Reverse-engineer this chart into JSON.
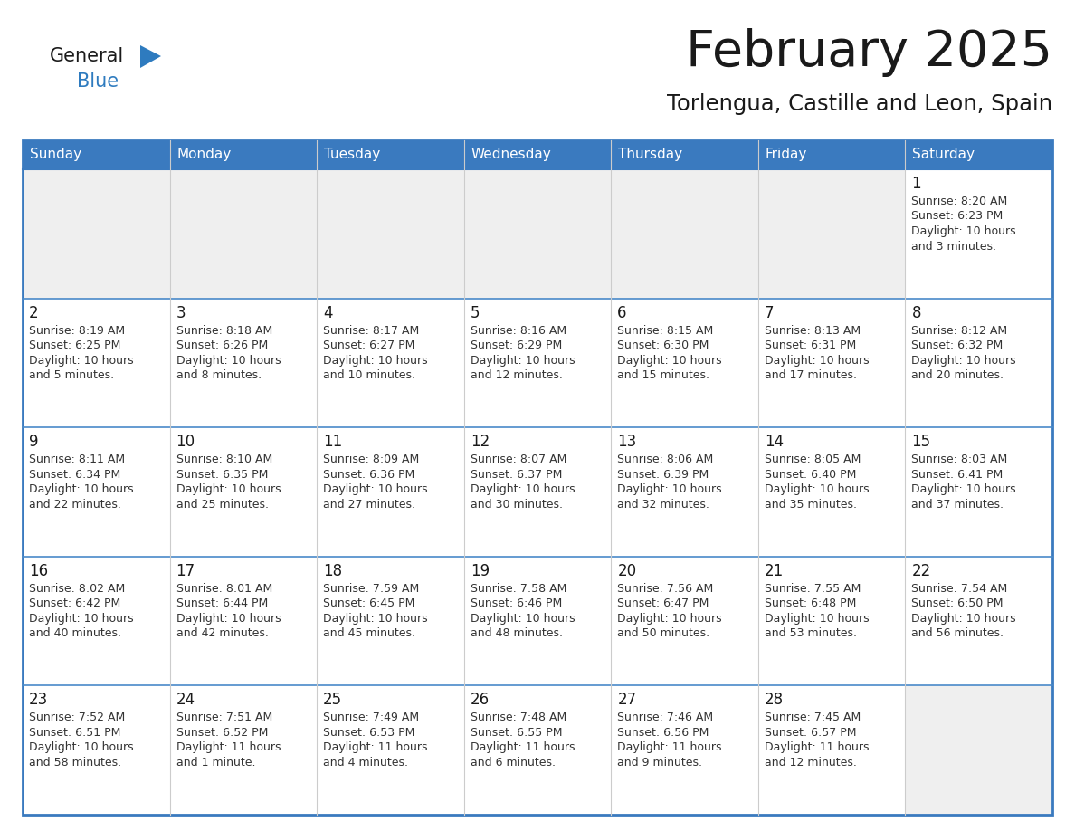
{
  "title": "February 2025",
  "subtitle": "Torlengua, Castille and Leon, Spain",
  "header_color": "#3a7abf",
  "header_text_color": "#ffffff",
  "border_color": "#3a7abf",
  "row_border_color": "#4a8ac9",
  "col_border_color": "#cccccc",
  "day_names": [
    "Sunday",
    "Monday",
    "Tuesday",
    "Wednesday",
    "Thursday",
    "Friday",
    "Saturday"
  ],
  "title_color": "#1a1a1a",
  "subtitle_color": "#1a1a1a",
  "day_num_color": "#1a1a1a",
  "cell_text_color": "#333333",
  "empty_cell_bg": "#efefef",
  "filled_cell_bg": "#ffffff",
  "calendar": [
    [
      null,
      null,
      null,
      null,
      null,
      null,
      {
        "day": 1,
        "rise": "Sunrise: 8:20 AM",
        "set": "Sunset: 6:23 PM",
        "day_hrs": "Daylight: 10 hours",
        "day_min": "and 3 minutes."
      }
    ],
    [
      {
        "day": 2,
        "rise": "Sunrise: 8:19 AM",
        "set": "Sunset: 6:25 PM",
        "day_hrs": "Daylight: 10 hours",
        "day_min": "and 5 minutes."
      },
      {
        "day": 3,
        "rise": "Sunrise: 8:18 AM",
        "set": "Sunset: 6:26 PM",
        "day_hrs": "Daylight: 10 hours",
        "day_min": "and 8 minutes."
      },
      {
        "day": 4,
        "rise": "Sunrise: 8:17 AM",
        "set": "Sunset: 6:27 PM",
        "day_hrs": "Daylight: 10 hours",
        "day_min": "and 10 minutes."
      },
      {
        "day": 5,
        "rise": "Sunrise: 8:16 AM",
        "set": "Sunset: 6:29 PM",
        "day_hrs": "Daylight: 10 hours",
        "day_min": "and 12 minutes."
      },
      {
        "day": 6,
        "rise": "Sunrise: 8:15 AM",
        "set": "Sunset: 6:30 PM",
        "day_hrs": "Daylight: 10 hours",
        "day_min": "and 15 minutes."
      },
      {
        "day": 7,
        "rise": "Sunrise: 8:13 AM",
        "set": "Sunset: 6:31 PM",
        "day_hrs": "Daylight: 10 hours",
        "day_min": "and 17 minutes."
      },
      {
        "day": 8,
        "rise": "Sunrise: 8:12 AM",
        "set": "Sunset: 6:32 PM",
        "day_hrs": "Daylight: 10 hours",
        "day_min": "and 20 minutes."
      }
    ],
    [
      {
        "day": 9,
        "rise": "Sunrise: 8:11 AM",
        "set": "Sunset: 6:34 PM",
        "day_hrs": "Daylight: 10 hours",
        "day_min": "and 22 minutes."
      },
      {
        "day": 10,
        "rise": "Sunrise: 8:10 AM",
        "set": "Sunset: 6:35 PM",
        "day_hrs": "Daylight: 10 hours",
        "day_min": "and 25 minutes."
      },
      {
        "day": 11,
        "rise": "Sunrise: 8:09 AM",
        "set": "Sunset: 6:36 PM",
        "day_hrs": "Daylight: 10 hours",
        "day_min": "and 27 minutes."
      },
      {
        "day": 12,
        "rise": "Sunrise: 8:07 AM",
        "set": "Sunset: 6:37 PM",
        "day_hrs": "Daylight: 10 hours",
        "day_min": "and 30 minutes."
      },
      {
        "day": 13,
        "rise": "Sunrise: 8:06 AM",
        "set": "Sunset: 6:39 PM",
        "day_hrs": "Daylight: 10 hours",
        "day_min": "and 32 minutes."
      },
      {
        "day": 14,
        "rise": "Sunrise: 8:05 AM",
        "set": "Sunset: 6:40 PM",
        "day_hrs": "Daylight: 10 hours",
        "day_min": "and 35 minutes."
      },
      {
        "day": 15,
        "rise": "Sunrise: 8:03 AM",
        "set": "Sunset: 6:41 PM",
        "day_hrs": "Daylight: 10 hours",
        "day_min": "and 37 minutes."
      }
    ],
    [
      {
        "day": 16,
        "rise": "Sunrise: 8:02 AM",
        "set": "Sunset: 6:42 PM",
        "day_hrs": "Daylight: 10 hours",
        "day_min": "and 40 minutes."
      },
      {
        "day": 17,
        "rise": "Sunrise: 8:01 AM",
        "set": "Sunset: 6:44 PM",
        "day_hrs": "Daylight: 10 hours",
        "day_min": "and 42 minutes."
      },
      {
        "day": 18,
        "rise": "Sunrise: 7:59 AM",
        "set": "Sunset: 6:45 PM",
        "day_hrs": "Daylight: 10 hours",
        "day_min": "and 45 minutes."
      },
      {
        "day": 19,
        "rise": "Sunrise: 7:58 AM",
        "set": "Sunset: 6:46 PM",
        "day_hrs": "Daylight: 10 hours",
        "day_min": "and 48 minutes."
      },
      {
        "day": 20,
        "rise": "Sunrise: 7:56 AM",
        "set": "Sunset: 6:47 PM",
        "day_hrs": "Daylight: 10 hours",
        "day_min": "and 50 minutes."
      },
      {
        "day": 21,
        "rise": "Sunrise: 7:55 AM",
        "set": "Sunset: 6:48 PM",
        "day_hrs": "Daylight: 10 hours",
        "day_min": "and 53 minutes."
      },
      {
        "day": 22,
        "rise": "Sunrise: 7:54 AM",
        "set": "Sunset: 6:50 PM",
        "day_hrs": "Daylight: 10 hours",
        "day_min": "and 56 minutes."
      }
    ],
    [
      {
        "day": 23,
        "rise": "Sunrise: 7:52 AM",
        "set": "Sunset: 6:51 PM",
        "day_hrs": "Daylight: 10 hours",
        "day_min": "and 58 minutes."
      },
      {
        "day": 24,
        "rise": "Sunrise: 7:51 AM",
        "set": "Sunset: 6:52 PM",
        "day_hrs": "Daylight: 11 hours",
        "day_min": "and 1 minute."
      },
      {
        "day": 25,
        "rise": "Sunrise: 7:49 AM",
        "set": "Sunset: 6:53 PM",
        "day_hrs": "Daylight: 11 hours",
        "day_min": "and 4 minutes."
      },
      {
        "day": 26,
        "rise": "Sunrise: 7:48 AM",
        "set": "Sunset: 6:55 PM",
        "day_hrs": "Daylight: 11 hours",
        "day_min": "and 6 minutes."
      },
      {
        "day": 27,
        "rise": "Sunrise: 7:46 AM",
        "set": "Sunset: 6:56 PM",
        "day_hrs": "Daylight: 11 hours",
        "day_min": "and 9 minutes."
      },
      {
        "day": 28,
        "rise": "Sunrise: 7:45 AM",
        "set": "Sunset: 6:57 PM",
        "day_hrs": "Daylight: 11 hours",
        "day_min": "and 12 minutes."
      },
      null
    ]
  ]
}
